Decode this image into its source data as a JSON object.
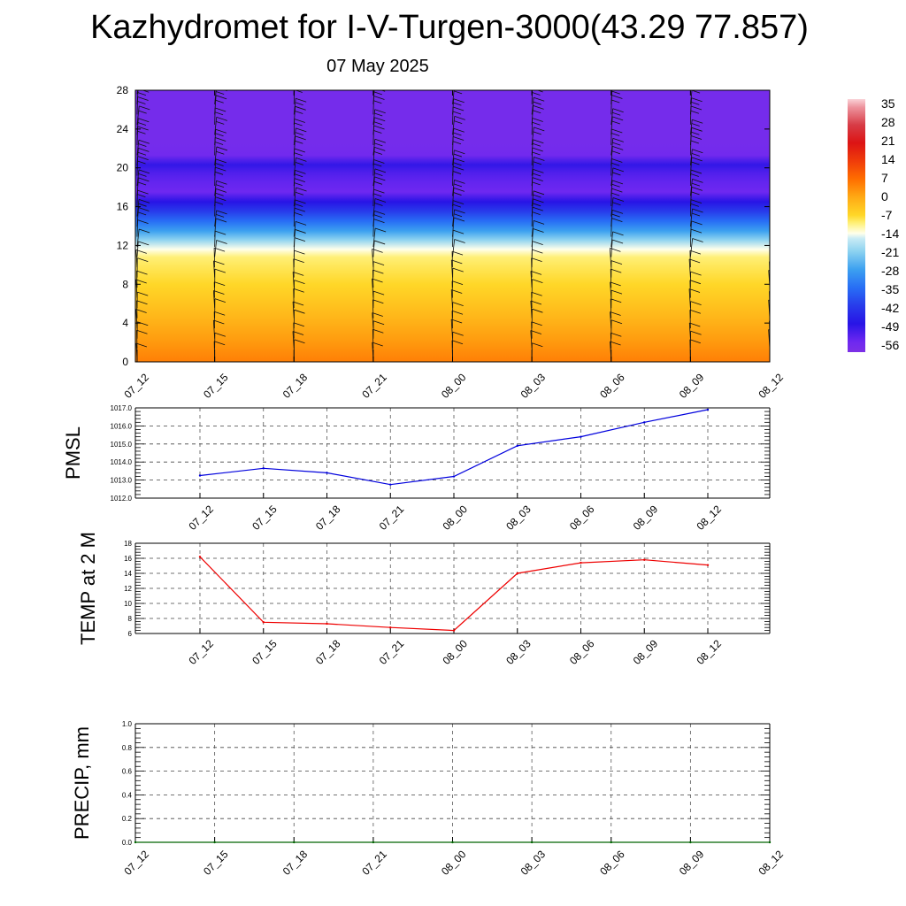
{
  "page": {
    "title": "Kazhydromet for I-V-Turgen-3000(43.29 77.857)",
    "subtitle": "07 May 2025"
  },
  "chart_data": [
    {
      "type": "heatmap",
      "title": "",
      "xlabel": "",
      "ylabel": "",
      "x": [
        "07_12",
        "07_15",
        "07_18",
        "07_21",
        "08_00",
        "08_03",
        "08_06",
        "08_09",
        "08_12"
      ],
      "ylim": [
        0,
        28
      ],
      "yticks": [
        0,
        4,
        8,
        12,
        16,
        20,
        24,
        28
      ],
      "colorbar": {
        "labels": [
          "35",
          "28",
          "21",
          "14",
          "7",
          "0",
          "-7",
          "-14",
          "-21",
          "-28",
          "-35",
          "-42",
          "-49",
          "-56"
        ],
        "range": [
          -60,
          38
        ]
      },
      "level_temperature_profile": {
        "levels": [
          0,
          2,
          4,
          6,
          8,
          10,
          10.8,
          11.6,
          12.6,
          13.5,
          14.5,
          15.5,
          16.5,
          17.5,
          18.5,
          19.5,
          20.3,
          21.3,
          22.5,
          28
        ],
        "temperature": [
          5,
          2,
          -1,
          -4,
          -7,
          -9,
          -10,
          -14,
          -21,
          -28,
          -35,
          -42,
          -49,
          -56,
          -55,
          -53,
          -50,
          -57,
          -58,
          -58
        ]
      },
      "wind_barbs": "present at every time column"
    },
    {
      "type": "line",
      "title": "",
      "xlabel": "",
      "ylabel": "PMSL",
      "x": [
        "07_12",
        "07_15",
        "07_18",
        "07_21",
        "08_00",
        "08_03",
        "08_06",
        "08_09",
        "08_12"
      ],
      "series": [
        {
          "name": "",
          "color": "#0000dd",
          "values": [
            1013.25,
            1013.65,
            1013.4,
            1012.75,
            1013.2,
            1014.9,
            1015.4,
            1016.2,
            1016.9
          ]
        }
      ],
      "ylim": [
        1012.0,
        1017.0
      ],
      "yticks": [
        "1012.0",
        "1013.0",
        "1014.0",
        "1015.0",
        "1016.0",
        "1017.0"
      ]
    },
    {
      "type": "line",
      "title": "",
      "xlabel": "",
      "ylabel": "TEMP at 2 M",
      "x": [
        "07_12",
        "07_15",
        "07_18",
        "07_21",
        "08_00",
        "08_03",
        "08_06",
        "08_09",
        "08_12"
      ],
      "series": [
        {
          "name": "",
          "color": "#ee0000",
          "values": [
            16.2,
            7.5,
            7.3,
            6.8,
            6.4,
            14.0,
            15.4,
            15.8,
            15.1
          ]
        }
      ],
      "ylim": [
        6,
        18
      ],
      "yticks": [
        "6",
        "8",
        "10",
        "12",
        "14",
        "16",
        "18"
      ]
    },
    {
      "type": "line",
      "title": "",
      "xlabel": "",
      "ylabel": "PRECIP, mm",
      "x": [
        "07_12",
        "07_15",
        "07_18",
        "07_21",
        "08_00",
        "08_03",
        "08_06",
        "08_09",
        "08_12"
      ],
      "series": [
        {
          "name": "",
          "color": "#006400",
          "values": [
            0,
            0,
            0,
            0,
            0,
            0,
            0,
            0,
            0
          ]
        }
      ],
      "ylim": [
        0.0,
        1.0
      ],
      "yticks": [
        "0.0",
        "0.2",
        "0.4",
        "0.6",
        "0.8",
        "1.0"
      ]
    }
  ]
}
